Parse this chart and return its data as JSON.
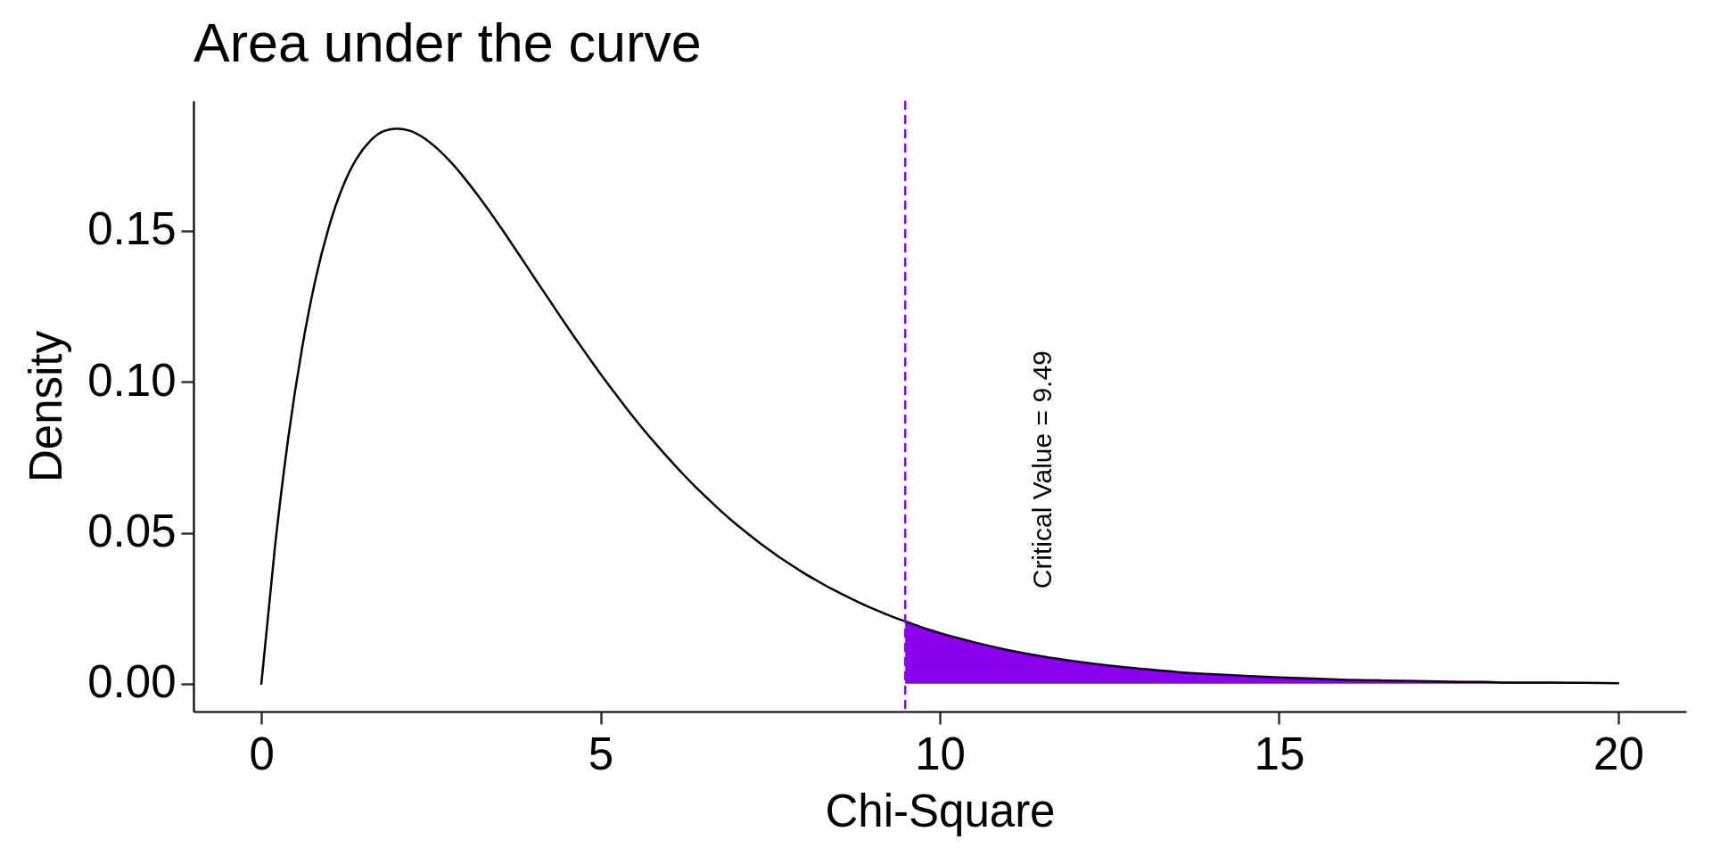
{
  "chart_data": {
    "type": "line",
    "title": "Area under the curve",
    "xlabel": "Chi-Square",
    "ylabel": "Density",
    "series": [
      {
        "type": "area",
        "color": "#8b00ec",
        "x": [
          9.49,
          9.6,
          9.8,
          10.0,
          10.5,
          11.0,
          11.5,
          12.0,
          12.5,
          13.0,
          13.5,
          14.0,
          14.5,
          15.0,
          15.5,
          16.0,
          16.5,
          17.0,
          17.5,
          18.0,
          18.5,
          19.0,
          19.5,
          20.0
        ],
        "values": [
          0.0206,
          0.0198,
          0.0182,
          0.0168,
          0.0138,
          0.0112,
          0.0091,
          0.0074,
          0.006,
          0.0049,
          0.0039,
          0.0032,
          0.0026,
          0.0021,
          0.0017,
          0.0013,
          0.0011,
          0.0009,
          0.0007,
          0.0006,
          0.0004,
          0.0004,
          0.0003,
          0.0002
        ]
      },
      {
        "color": "#000000",
        "x": [
          0,
          0.2,
          0.4,
          0.6,
          0.8,
          1.0,
          1.2,
          1.4,
          1.6,
          1.8,
          2.0,
          2.2,
          2.4,
          2.6,
          2.8,
          3.0,
          3.2,
          3.4,
          3.6,
          3.8,
          4.0,
          4.2,
          4.4,
          4.6,
          4.8,
          5.0,
          5.2,
          5.4,
          5.6,
          5.8,
          6.0,
          6.2,
          6.4,
          6.6,
          6.8,
          7.0,
          7.2,
          7.4,
          7.6,
          7.8,
          8.0,
          8.2,
          8.4,
          8.6,
          8.8,
          9.0,
          9.2,
          9.4,
          9.6,
          9.8,
          10.0,
          10.5,
          11.0,
          11.5,
          12.0,
          12.5,
          13.0,
          13.5,
          14.0,
          14.5,
          15.0,
          15.5,
          16.0,
          16.5,
          17.0,
          17.5,
          18.0,
          18.5,
          19.0,
          19.5,
          20.0
        ],
        "values": [
          0,
          0.0452,
          0.0819,
          0.1111,
          0.1341,
          0.1516,
          0.1646,
          0.1738,
          0.1797,
          0.183,
          0.1839,
          0.1831,
          0.1807,
          0.1771,
          0.1726,
          0.1673,
          0.1615,
          0.1553,
          0.1488,
          0.1421,
          0.1353,
          0.1286,
          0.1219,
          0.1153,
          0.1089,
          0.1026,
          0.0966,
          0.0907,
          0.0851,
          0.0798,
          0.0747,
          0.0698,
          0.0652,
          0.0609,
          0.0567,
          0.0528,
          0.0492,
          0.0457,
          0.0425,
          0.0395,
          0.0366,
          0.034,
          0.0315,
          0.0292,
          0.027,
          0.025,
          0.0231,
          0.0214,
          0.0198,
          0.0182,
          0.0168,
          0.0138,
          0.0112,
          0.0091,
          0.0074,
          0.006,
          0.0049,
          0.0039,
          0.0032,
          0.0026,
          0.0021,
          0.0017,
          0.0013,
          0.0011,
          0.0009,
          0.0007,
          0.0006,
          0.0004,
          0.0004,
          0.0003,
          0.0002
        ]
      }
    ],
    "xlim": [
      -1,
      21
    ],
    "ylim": [
      -0.0092,
      0.1931
    ],
    "xticks": [
      0,
      5,
      10,
      15,
      20
    ],
    "yticks": [
      {
        "value": 0,
        "label": "0.00"
      },
      {
        "value": 0.05,
        "label": "0.05"
      },
      {
        "value": 0.1,
        "label": "0.10"
      },
      {
        "value": 0.15,
        "label": "0.15"
      }
    ],
    "ref_lines": [
      {
        "axis": "x",
        "value": 9.49,
        "color": "#8b00ec",
        "line_style": "dashed"
      }
    ],
    "annotations": [
      "Critical Value = 9.49"
    ],
    "grid": false
  }
}
